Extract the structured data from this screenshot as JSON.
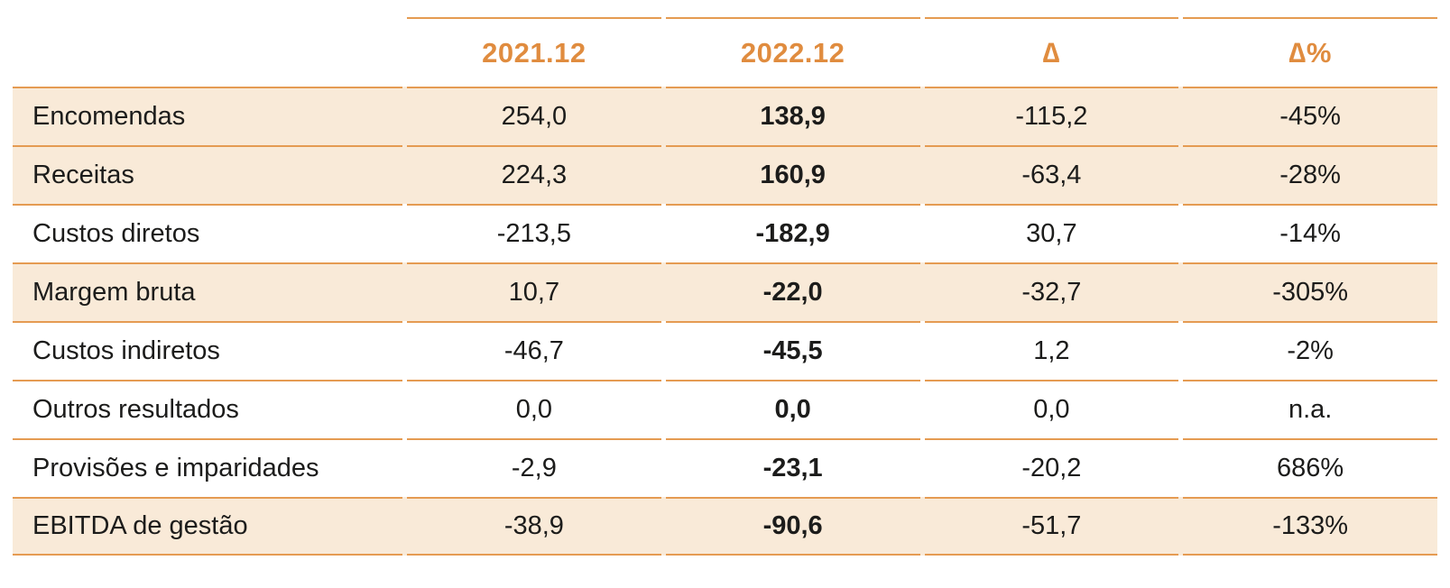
{
  "table": {
    "title_semantic": "financial-results-comparison-table",
    "columns": {
      "label": "",
      "period1": "2021.12",
      "period2": "2022.12",
      "delta": "∆",
      "delta_pct": "∆%"
    },
    "rows": [
      {
        "label": "Encomendas",
        "period1": "254,0",
        "period2": "138,9",
        "delta": "-115,2",
        "delta_pct": "-45%",
        "shaded": true
      },
      {
        "label": "Receitas",
        "period1": "224,3",
        "period2": "160,9",
        "delta": "-63,4",
        "delta_pct": "-28%",
        "shaded": true
      },
      {
        "label": "Custos diretos",
        "period1": "-213,5",
        "period2": "-182,9",
        "delta": "30,7",
        "delta_pct": "-14%",
        "shaded": false
      },
      {
        "label": "Margem bruta",
        "period1": "10,7",
        "period2": "-22,0",
        "delta": "-32,7",
        "delta_pct": "-305%",
        "shaded": true
      },
      {
        "label": "Custos indiretos",
        "period1": "-46,7",
        "period2": "-45,5",
        "delta": "1,2",
        "delta_pct": "-2%",
        "shaded": false
      },
      {
        "label": "Outros resultados",
        "period1": "0,0",
        "period2": "0,0",
        "delta": "0,0",
        "delta_pct": "n.a.",
        "shaded": false
      },
      {
        "label": "Provisões e imparidades",
        "period1": "-2,9",
        "period2": "-23,1",
        "delta": "-20,2",
        "delta_pct": "686%",
        "shaded": false
      },
      {
        "label": "EBITDA de gestão",
        "period1": "-38,9",
        "period2": "-90,6",
        "delta": "-51,7",
        "delta_pct": "-133%",
        "shaded": true
      }
    ]
  },
  "colors": {
    "accent_orange_text": "#e08c3f",
    "rule_orange": "#e59b52",
    "row_shade_peach": "#f9ead8",
    "body_text": "#1c1c1b",
    "page_background": "#ffffff"
  }
}
